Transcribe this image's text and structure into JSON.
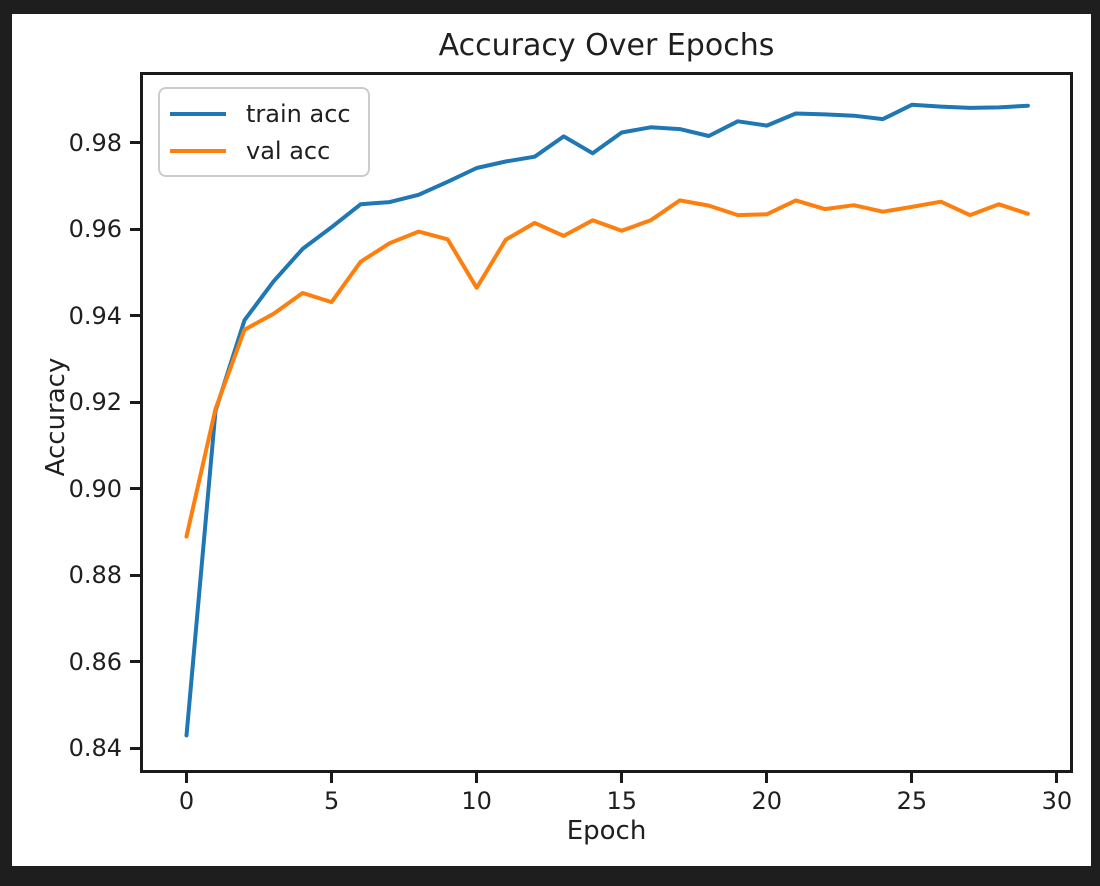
{
  "figure": {
    "outer_background": "#1e1e1e",
    "background": "#ffffff"
  },
  "chart_data": {
    "type": "line",
    "title": "Accuracy Over Epochs",
    "xlabel": "Epoch",
    "ylabel": "Accuracy",
    "x": [
      0,
      1,
      2,
      3,
      4,
      5,
      6,
      7,
      8,
      9,
      10,
      11,
      12,
      13,
      14,
      15,
      16,
      17,
      18,
      19,
      20,
      21,
      22,
      23,
      24,
      25,
      26,
      27,
      28,
      29
    ],
    "series": [
      {
        "name": "train acc",
        "color": "#1f77b4",
        "values": [
          0.843,
          0.918,
          0.939,
          0.948,
          0.9555,
          0.9605,
          0.9658,
          0.9663,
          0.968,
          0.971,
          0.9742,
          0.9757,
          0.9768,
          0.9815,
          0.9776,
          0.9824,
          0.9836,
          0.9832,
          0.9816,
          0.985,
          0.984,
          0.9868,
          0.9866,
          0.9863,
          0.9855,
          0.9888,
          0.9884,
          0.9881,
          0.9882,
          0.9886
        ]
      },
      {
        "name": "val acc",
        "color": "#ff7f0e",
        "values": [
          0.889,
          0.9185,
          0.9368,
          0.9405,
          0.9453,
          0.9432,
          0.9525,
          0.9568,
          0.9595,
          0.9577,
          0.9465,
          0.9576,
          0.9615,
          0.9585,
          0.9621,
          0.9597,
          0.9621,
          0.9667,
          0.9655,
          0.9633,
          0.9635,
          0.9667,
          0.9647,
          0.9656,
          0.9641,
          0.9652,
          0.9664,
          0.9633,
          0.9658,
          0.9636
        ]
      }
    ],
    "xlim": [
      -1.5,
      30.45
    ],
    "ylim": [
      0.835,
      0.9957
    ],
    "xticks": [
      0,
      5,
      10,
      15,
      20,
      25,
      30
    ],
    "yticks": [
      0.84,
      0.86,
      0.88,
      0.9,
      0.92,
      0.94,
      0.96,
      0.98
    ],
    "grid": false,
    "legend_position": "upper left",
    "axis_color": "#1a1a1a",
    "text_color": "#1f1f1f",
    "line_width": 4
  }
}
